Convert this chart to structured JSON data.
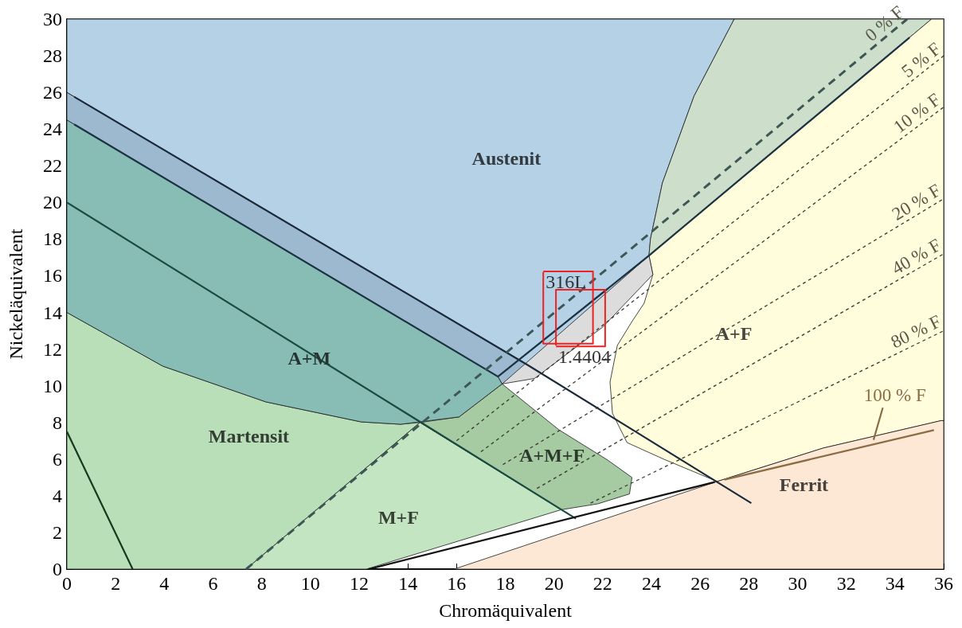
{
  "chart_data": {
    "type": "line",
    "xlabel": "Chromäquivalent",
    "ylabel": "Nickeläquivalent",
    "xlim": [
      0,
      36
    ],
    "ylim": [
      0,
      30
    ],
    "xticks": [
      0,
      2,
      4,
      6,
      8,
      10,
      12,
      14,
      16,
      18,
      20,
      22,
      24,
      26,
      28,
      30,
      32,
      34,
      36
    ],
    "yticks": [
      0,
      2,
      4,
      6,
      8,
      10,
      12,
      14,
      16,
      18,
      20,
      22,
      24,
      26,
      28,
      30
    ],
    "grid": false,
    "legend": false,
    "marker": "none",
    "line_style": "solid",
    "series": [
      {
        "type": "area",
        "name": "Austenit",
        "color": "#b5d1e5",
        "x": [
          0,
          27.4,
          25.75,
          24.45,
          23.96,
          23.9,
          18.9,
          0
        ],
        "values": [
          30,
          30,
          25.8,
          21.06,
          18.0,
          17.1,
          11.15,
          26
        ]
      },
      {
        "type": "area",
        "color": "#cddfcb",
        "x": [
          27.4,
          35.5,
          23.9,
          23.96,
          24.45,
          25.75
        ],
        "values": [
          30,
          30,
          17.1,
          18.0,
          21.06,
          25.8
        ]
      },
      {
        "type": "area",
        "name": "A+F",
        "color": "#fffddc",
        "x": [
          23.9,
          35.5,
          36,
          36,
          35.9,
          31.05,
          26.7,
          24.5,
          23.0,
          22.4,
          22.3,
          22.6,
          23.2,
          23.7,
          24.06
        ],
        "values": [
          17.1,
          30,
          30,
          8.1,
          8.1,
          6.6,
          4.78,
          6.0,
          6.9,
          8.5,
          10.2,
          12.2,
          13.5,
          14.5,
          16.07
        ]
      },
      {
        "type": "area",
        "name": "Ferrit",
        "color": "#fde7d5",
        "x": [
          15.9,
          26.7,
          31.05,
          35.9,
          36,
          36
        ],
        "values": [
          0,
          4.78,
          6.6,
          8.1,
          8.1,
          0
        ]
      },
      {
        "type": "area",
        "name": "Martensit",
        "color": "#b9dfb9",
        "x": [
          0,
          0,
          3.94,
          8.17,
          12.08,
          13.7,
          14.5,
          7.36
        ],
        "values": [
          0,
          14,
          11.07,
          9.12,
          8.03,
          7.9,
          8.0,
          0
        ]
      },
      {
        "type": "area",
        "name": "M+F",
        "color": "#c3e5c1",
        "x": [
          7.36,
          14.5,
          20.3,
          12.3
        ],
        "values": [
          0,
          8.0,
          3.24,
          0
        ]
      },
      {
        "type": "area",
        "name": "A+M+F",
        "color": "#a6cba3",
        "x": [
          14.5,
          16.1,
          17.87,
          20.2,
          22.2,
          23.2,
          23.1,
          21.8,
          20.3
        ],
        "values": [
          8.0,
          8.3,
          10.1,
          7.6,
          5.95,
          5.0,
          4.1,
          3.56,
          3.24
        ]
      },
      {
        "type": "area",
        "name": "A+M",
        "color": "#88bdb6",
        "x": [
          0,
          17.7,
          17.87,
          16.1,
          13.7,
          12.08,
          8.17,
          3.94,
          0
        ],
        "values": [
          24.5,
          10.5,
          10.1,
          8.3,
          7.9,
          8.03,
          9.12,
          11.07,
          14
        ]
      },
      {
        "type": "area",
        "color": "#9cb9cf",
        "x": [
          0,
          18.9,
          17.87,
          17.7,
          0
        ],
        "values": [
          26,
          11.15,
          10.1,
          10.5,
          24.5
        ]
      },
      {
        "type": "area",
        "color": "#dcdcdc",
        "x": [
          17.87,
          23.9,
          24.06,
          22.0,
          19.2
        ],
        "values": [
          10.1,
          17.1,
          16.07,
          13.2,
          10.4
        ]
      },
      {
        "color": "#1a2a3a",
        "x": [
          0.3,
          18.9,
          28.1
        ],
        "values": [
          25.76,
          11.15,
          3.6
        ]
      },
      {
        "color": "#1c3240",
        "x": [
          0.3,
          17.7,
          23.9,
          34.6
        ],
        "values": [
          24.26,
          10.5,
          17.1,
          29.0
        ]
      },
      {
        "color": "#1a4a40",
        "x": [
          0,
          20.9
        ],
        "values": [
          20,
          2.75
        ]
      },
      {
        "color": "#163a1e",
        "x": [
          0,
          2.7
        ],
        "values": [
          7.5,
          0
        ]
      },
      {
        "color": "#111111",
        "x": [
          12.4,
          26.6
        ],
        "values": [
          0,
          4.75
        ]
      },
      {
        "name": "0 % F",
        "color": "#3e5656",
        "line_style": "dashed",
        "x": [
          7.36,
          34.5
        ],
        "values": [
          0,
          30
        ]
      },
      {
        "name": "5 % F",
        "color": "#3a3a30",
        "line_style": "dotted",
        "x": [
          16.0,
          36
        ],
        "values": [
          7.0,
          28.0
        ]
      },
      {
        "name": "10 % F",
        "color": "#3a3a30",
        "line_style": "dotted",
        "x": [
          17.0,
          36
        ],
        "values": [
          6.4,
          25.2
        ]
      },
      {
        "name": "20 % F",
        "color": "#3a3a30",
        "line_style": "dotted",
        "x": [
          17.9,
          36
        ],
        "values": [
          5.7,
          20.2
        ]
      },
      {
        "name": "40 % F",
        "color": "#3a3a30",
        "line_style": "dotted",
        "x": [
          19.3,
          36
        ],
        "values": [
          4.4,
          17.2
        ]
      },
      {
        "name": "80 % F",
        "color": "#3a3a30",
        "line_style": "dotted",
        "x": [
          21.5,
          36
        ],
        "values": [
          3.6,
          13.0
        ]
      },
      {
        "name": "100 % F",
        "color": "#8a6d45",
        "x": [
          27.0,
          35.6
        ],
        "values": [
          4.88,
          7.58
        ]
      },
      {
        "color": "#8a6d45",
        "x": [
          33.5,
          33.12
        ],
        "values": [
          8.8,
          7.05
        ]
      },
      {
        "color": "#ee2222",
        "x": [
          19.56,
          21.6,
          21.6,
          19.56,
          19.56
        ],
        "values": [
          16.24,
          16.24,
          12.3,
          12.3,
          16.2
        ]
      },
      {
        "color": "#ee2222",
        "x": [
          20.08,
          22.1,
          22.1,
          20.08,
          20.08
        ],
        "values": [
          12.15,
          12.15,
          15.24,
          15.24,
          12.2
        ]
      }
    ],
    "annotations": [
      {
        "text": "316L",
        "x": 19.56,
        "y": 16.24
      },
      {
        "text": "1.4404",
        "x": 20.08,
        "y": 12.15
      }
    ]
  }
}
